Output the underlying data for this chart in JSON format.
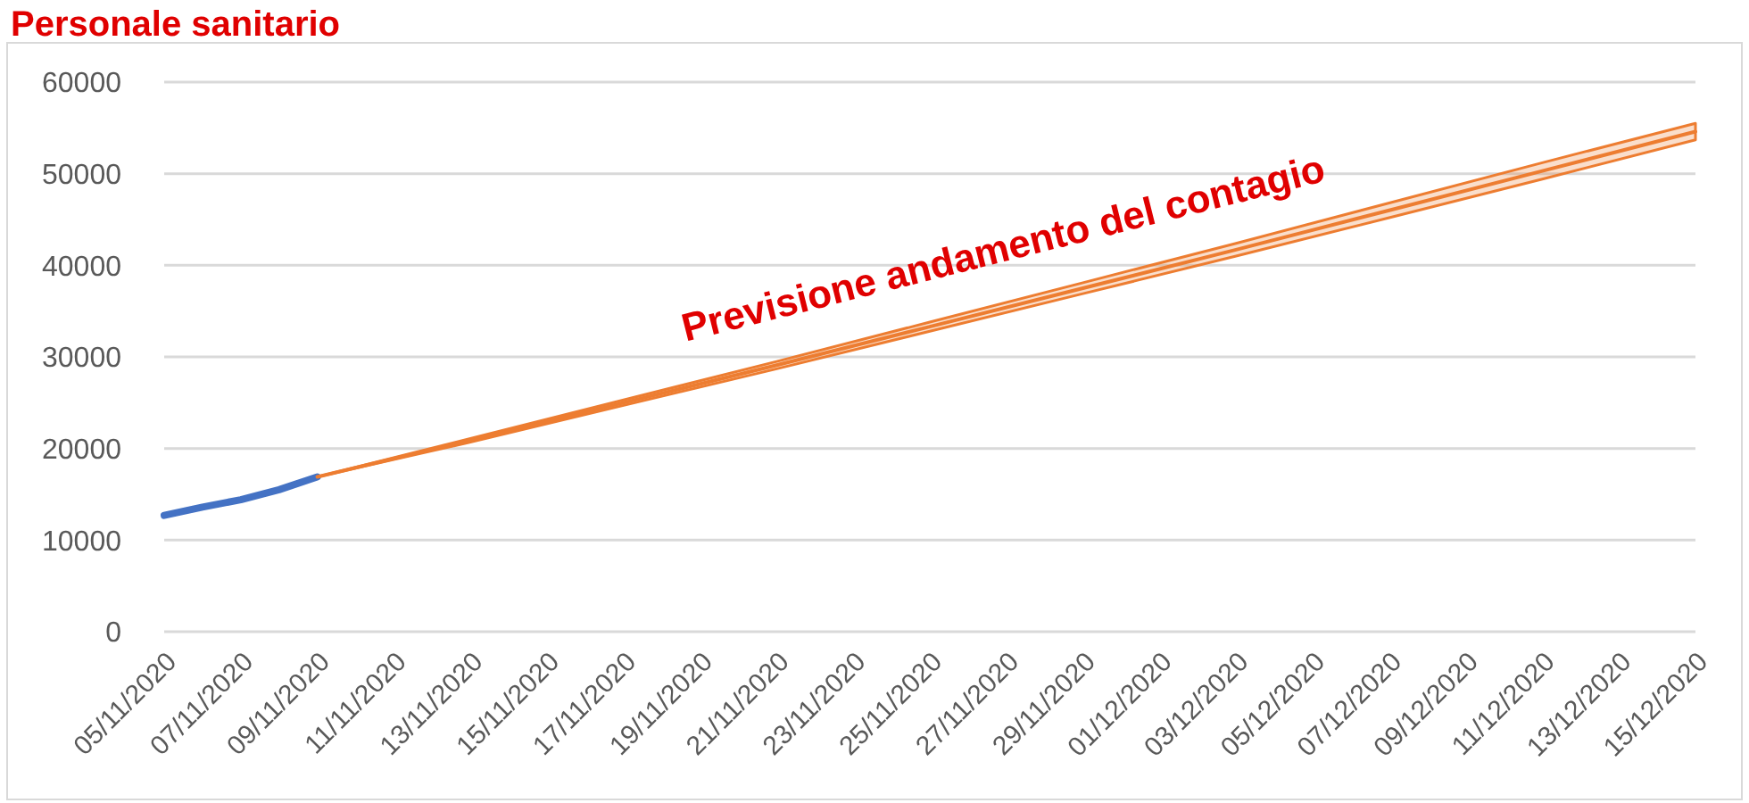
{
  "chart_data": {
    "type": "line",
    "title": "Personale sanitario",
    "annotations": [
      "Previsione andamento del contagio"
    ],
    "xlim": [
      "2020-11-05",
      "2020-12-15"
    ],
    "xticks": [
      {
        "value": "2020-11-05",
        "label": "05/11/2020"
      },
      {
        "value": "2020-11-07",
        "label": "07/11/2020"
      },
      {
        "value": "2020-11-09",
        "label": "09/11/2020"
      },
      {
        "value": "2020-11-11",
        "label": "11/11/2020"
      },
      {
        "value": "2020-11-13",
        "label": "13/11/2020"
      },
      {
        "value": "2020-11-15",
        "label": "15/11/2020"
      },
      {
        "value": "2020-11-17",
        "label": "17/11/2020"
      },
      {
        "value": "2020-11-19",
        "label": "19/11/2020"
      },
      {
        "value": "2020-11-21",
        "label": "21/11/2020"
      },
      {
        "value": "2020-11-23",
        "label": "23/11/2020"
      },
      {
        "value": "2020-11-25",
        "label": "25/11/2020"
      },
      {
        "value": "2020-11-27",
        "label": "27/11/2020"
      },
      {
        "value": "2020-11-29",
        "label": "29/11/2020"
      },
      {
        "value": "2020-12-01",
        "label": "01/12/2020"
      },
      {
        "value": "2020-12-03",
        "label": "03/12/2020"
      },
      {
        "value": "2020-12-05",
        "label": "05/12/2020"
      },
      {
        "value": "2020-12-07",
        "label": "07/12/2020"
      },
      {
        "value": "2020-12-09",
        "label": "09/12/2020"
      },
      {
        "value": "2020-12-11",
        "label": "11/12/2020"
      },
      {
        "value": "2020-12-13",
        "label": "13/12/2020"
      },
      {
        "value": "2020-12-15",
        "label": "15/12/2020"
      }
    ],
    "ylim": [
      0,
      60000
    ],
    "yticks": [
      0,
      10000,
      20000,
      30000,
      40000,
      50000,
      60000
    ],
    "grid": "y",
    "marker": "none",
    "series": [
      {
        "color": "#4472c4",
        "x": [
          "2020-11-05",
          "2020-11-06",
          "2020-11-07",
          "2020-11-08",
          "2020-11-09"
        ],
        "values": [
          12700,
          13600,
          14400,
          15500,
          16900
        ]
      },
      {
        "color": "#ed7d31",
        "x": [
          "2020-11-09",
          "2020-11-13",
          "2020-11-17",
          "2020-11-21",
          "2020-11-25",
          "2020-11-29",
          "2020-12-03",
          "2020-12-07",
          "2020-12-11",
          "2020-12-15"
        ],
        "values": [
          16900,
          20900,
          25000,
          29100,
          33300,
          37500,
          41700,
          46000,
          50300,
          54600
        ],
        "lower": [
          16900,
          20700,
          24700,
          28700,
          32800,
          36900,
          41000,
          45200,
          49400,
          53700
        ],
        "upper": [
          16900,
          21100,
          25300,
          29500,
          33800,
          38100,
          42400,
          46800,
          51200,
          55500
        ]
      }
    ]
  }
}
